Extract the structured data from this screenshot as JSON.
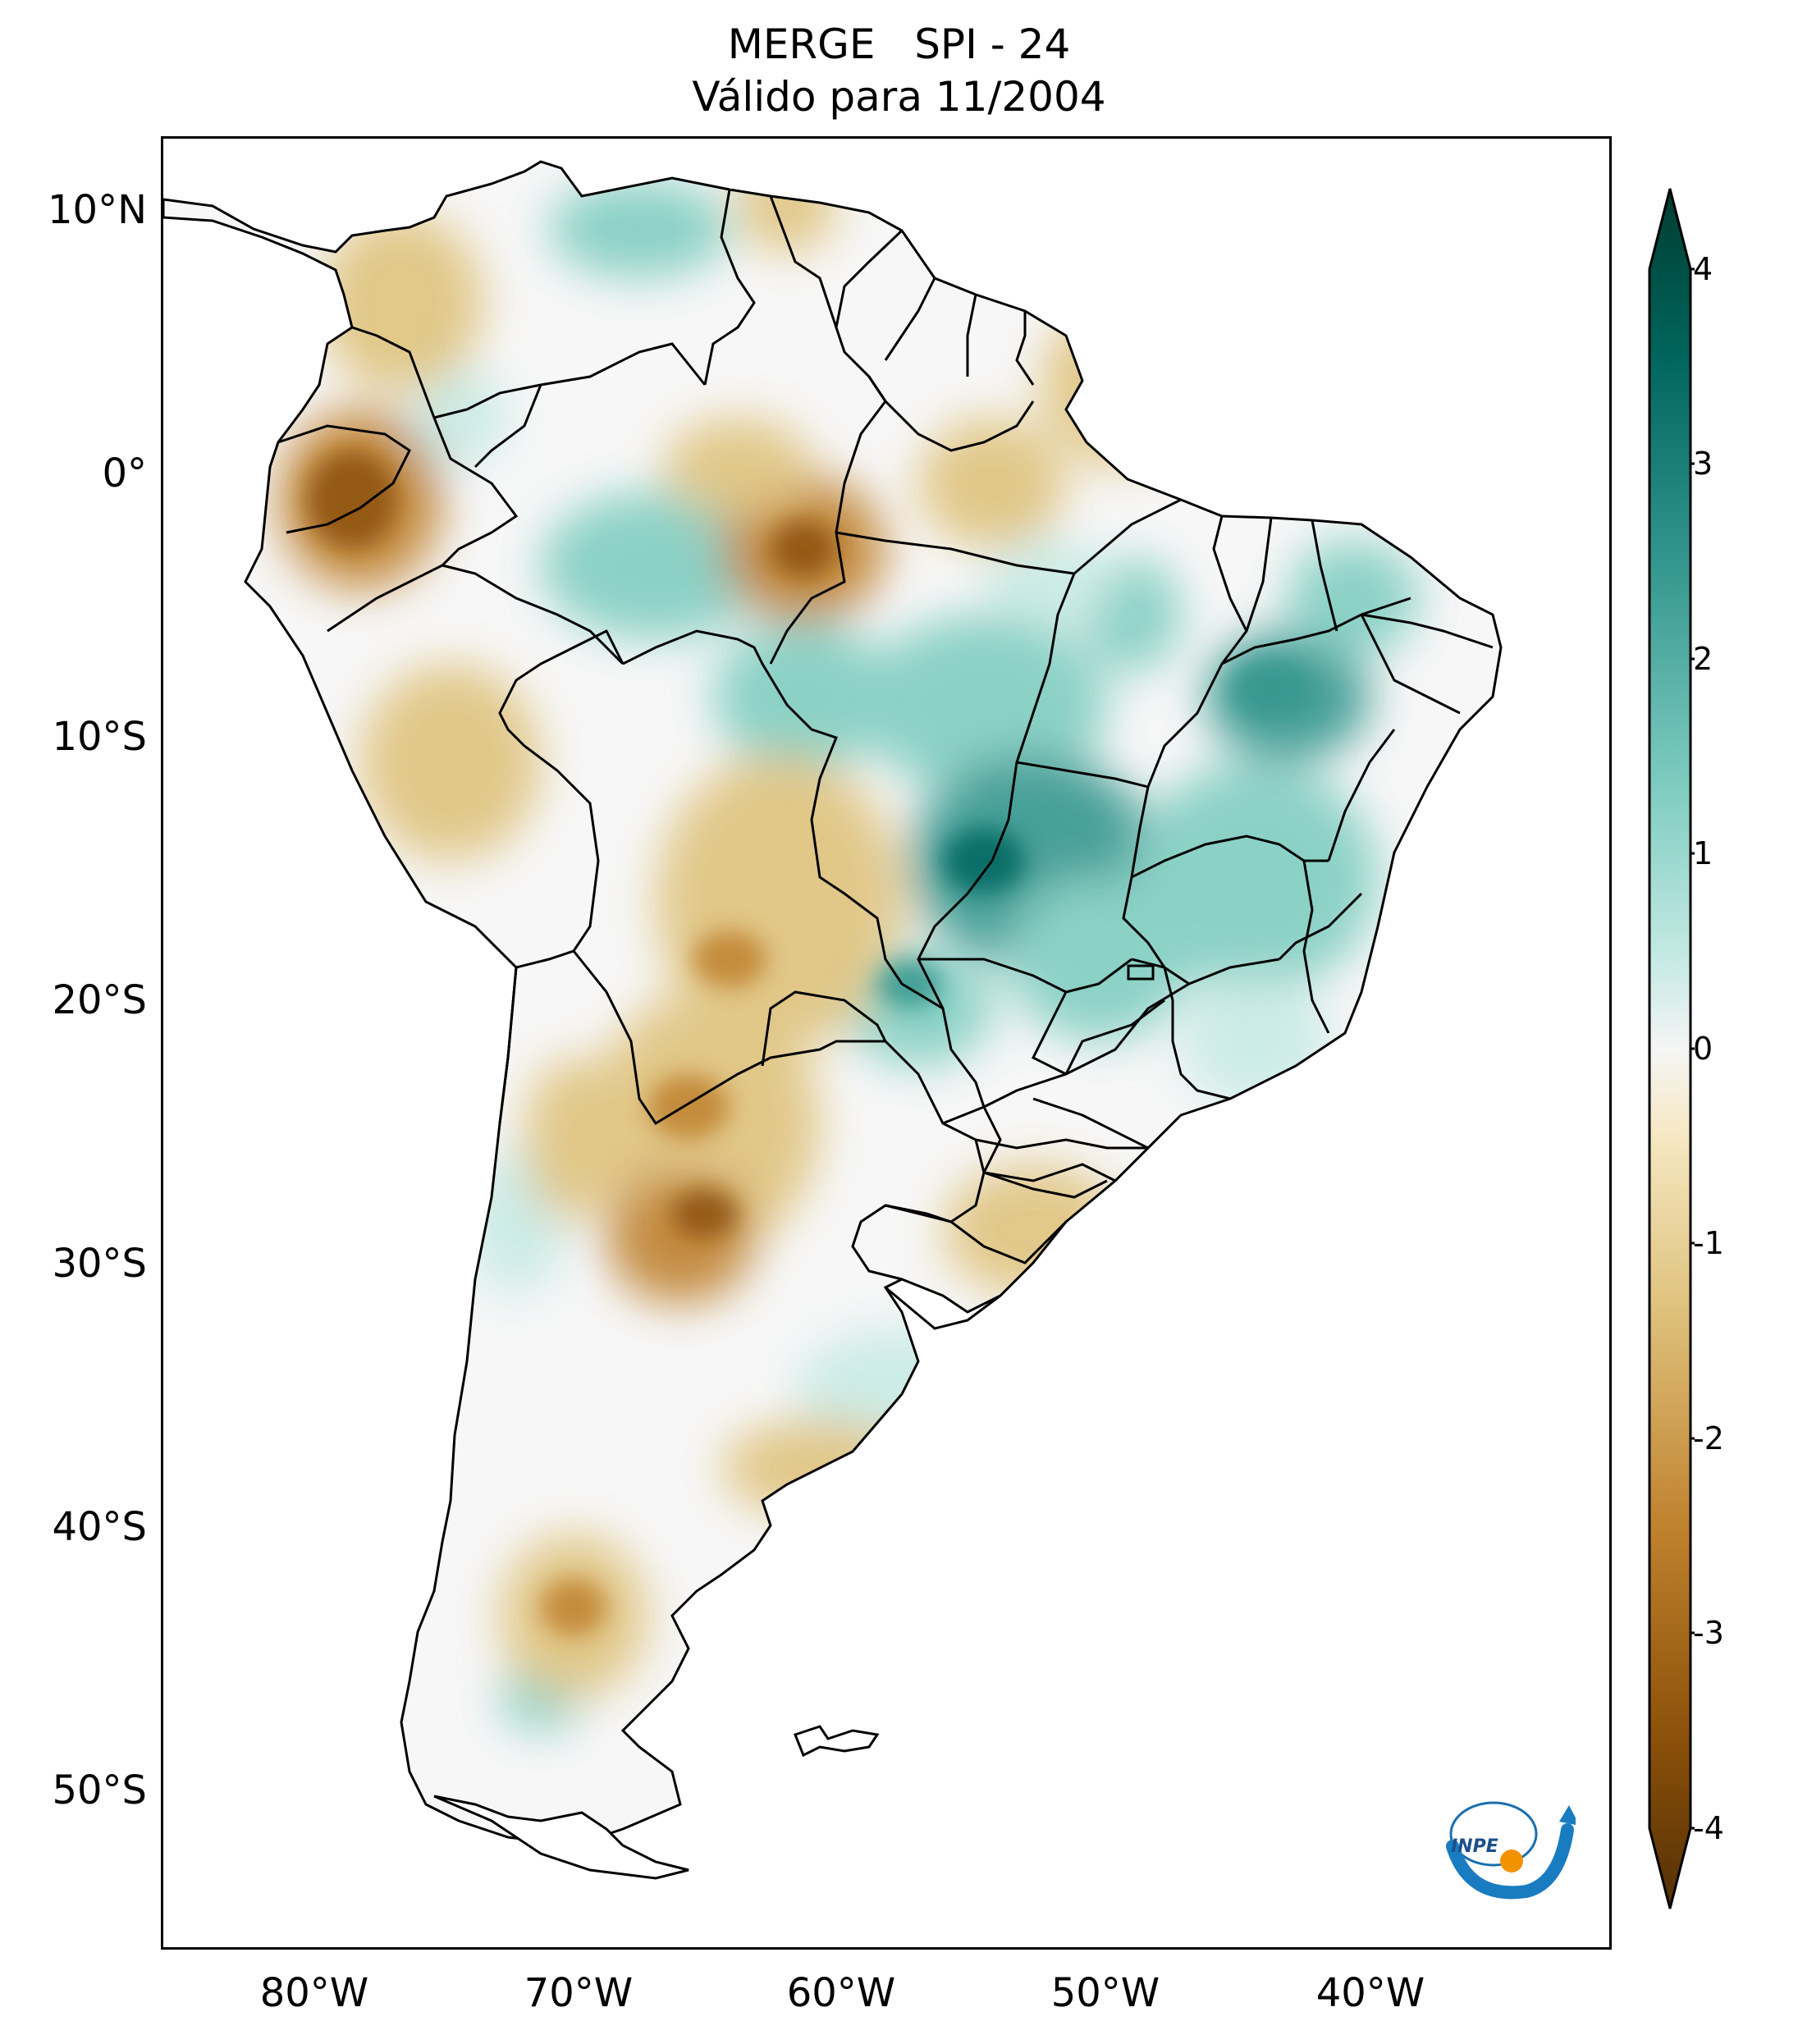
{
  "title": {
    "line1": "MERGE   SPI - 24",
    "line2": "Válido para 11/2004"
  },
  "map": {
    "lat_labels": [
      "10°N",
      "0°",
      "10°S",
      "20°S",
      "30°S",
      "40°S",
      "50°S"
    ],
    "lon_labels": [
      "80°W",
      "70°W",
      "60°W",
      "50°W",
      "40°W"
    ],
    "colors": {
      "dry_extreme": "#543005",
      "dry_strong": "#8c510a",
      "dry_moderate": "#bf812d",
      "dry_light": "#dfc27d",
      "dry_faint": "#f6e8c3",
      "neutral": "#f5f5f5",
      "wet_faint": "#c7eae5",
      "wet_light": "#80cdc1",
      "wet_moderate": "#35978f",
      "wet_strong": "#01665e",
      "wet_extreme": "#003c30"
    }
  },
  "colorbar": {
    "ticks": [
      "4",
      "3",
      "2",
      "1",
      "0",
      "-1",
      "-2",
      "-3",
      "-4"
    ],
    "min": -4,
    "max": 4,
    "extend": "both"
  },
  "logo": {
    "text": "INPE"
  }
}
